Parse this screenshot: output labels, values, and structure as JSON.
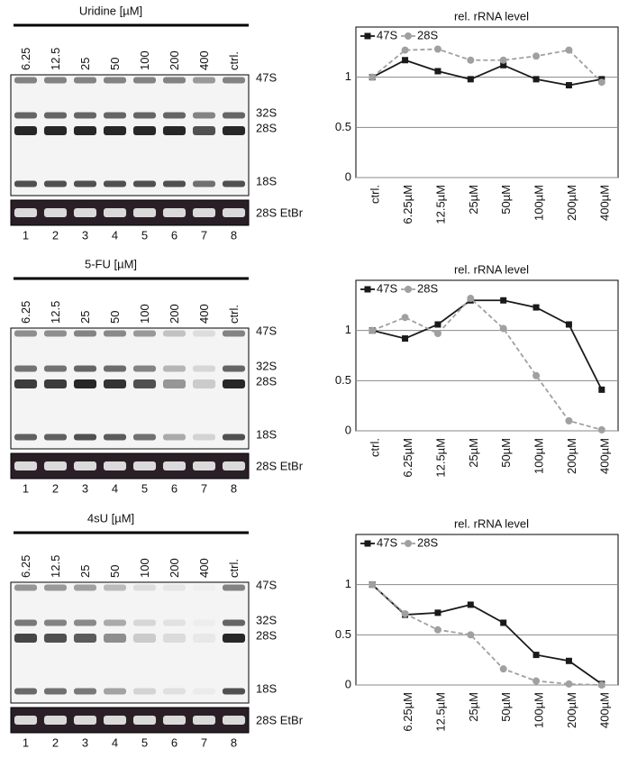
{
  "gels": [
    {
      "title": "Uridine [µM]",
      "lanes": [
        "6.25",
        "12.5",
        "25",
        "50",
        "100",
        "200",
        "400",
        "ctrl."
      ],
      "bands": [
        "47S",
        "32S",
        "28S",
        "18S"
      ],
      "loading_label": "28S EtBr",
      "lane_numbers": [
        "1",
        "2",
        "3",
        "4",
        "5",
        "6",
        "7",
        "8"
      ]
    },
    {
      "title": "5-FU [µM]",
      "lanes": [
        "6.25",
        "12.5",
        "25",
        "50",
        "100",
        "200",
        "400",
        "ctrl."
      ],
      "bands": [
        "47S",
        "32S",
        "28S",
        "18S"
      ],
      "loading_label": "28S EtBr",
      "lane_numbers": [
        "1",
        "2",
        "3",
        "4",
        "5",
        "6",
        "7",
        "8"
      ]
    },
    {
      "title": "4sU [µM]",
      "lanes": [
        "6.25",
        "12.5",
        "25",
        "50",
        "100",
        "200",
        "400",
        "ctrl."
      ],
      "bands": [
        "47S",
        "32S",
        "28S",
        "18S"
      ],
      "loading_label": "28S EtBr",
      "lane_numbers": [
        "1",
        "2",
        "3",
        "4",
        "5",
        "6",
        "7",
        "8"
      ]
    }
  ],
  "chart_data": [
    {
      "type": "line",
      "title": "rel. rRNA level",
      "categories": [
        "ctrl.",
        "6.25µM",
        "12.5µM",
        "25µM",
        "50µM",
        "100µM",
        "200µM",
        "400µM"
      ],
      "series": [
        {
          "name": "47S",
          "color": "#1a1a1a",
          "marker": "square",
          "dashed": false,
          "values": [
            1,
            1.17,
            1.06,
            0.98,
            1.12,
            0.98,
            0.92,
            0.98
          ]
        },
        {
          "name": "28S",
          "color": "#a0a0a0",
          "marker": "circle",
          "dashed": true,
          "values": [
            1,
            1.27,
            1.28,
            1.17,
            1.17,
            1.21,
            1.27,
            0.95
          ]
        }
      ],
      "ylim": [
        0,
        1.5
      ],
      "yticks": [
        0,
        0.5,
        1
      ],
      "grid": true,
      "legend": "top-left"
    },
    {
      "type": "line",
      "title": "rel. rRNA level",
      "categories": [
        "ctrl.",
        "6.25µM",
        "12.5µM",
        "25µM",
        "50µM",
        "100µM",
        "200µM",
        "400µM"
      ],
      "series": [
        {
          "name": "47S",
          "color": "#1a1a1a",
          "marker": "square",
          "dashed": false,
          "values": [
            1,
            0.92,
            1.06,
            1.3,
            1.3,
            1.23,
            1.06,
            0.41
          ]
        },
        {
          "name": "28S",
          "color": "#a0a0a0",
          "marker": "circle",
          "dashed": true,
          "values": [
            1,
            1.13,
            0.97,
            1.32,
            1.02,
            0.55,
            0.1,
            0.01
          ]
        }
      ],
      "ylim": [
        0,
        1.5
      ],
      "yticks": [
        0,
        0.5,
        1
      ],
      "grid": true,
      "legend": "top-left"
    },
    {
      "type": "line",
      "title": "rel. rRNA level",
      "categories": [
        null,
        "6.25µM",
        "12.5µM",
        "25µM",
        "50µM",
        "100µM",
        "200µM",
        "400µM"
      ],
      "series": [
        {
          "name": "47S",
          "color": "#1a1a1a",
          "marker": "square",
          "dashed": false,
          "values": [
            1,
            0.7,
            0.72,
            0.8,
            0.62,
            0.3,
            0.24,
            0.01
          ]
        },
        {
          "name": "28S",
          "color": "#a0a0a0",
          "marker": "circle",
          "dashed": true,
          "values": [
            1,
            0.71,
            0.55,
            0.5,
            0.16,
            0.04,
            0.01,
            0
          ]
        }
      ],
      "ylim": [
        0,
        1.5
      ],
      "yticks": [
        0,
        0.5,
        1
      ],
      "grid": true,
      "legend": "top-left"
    }
  ]
}
